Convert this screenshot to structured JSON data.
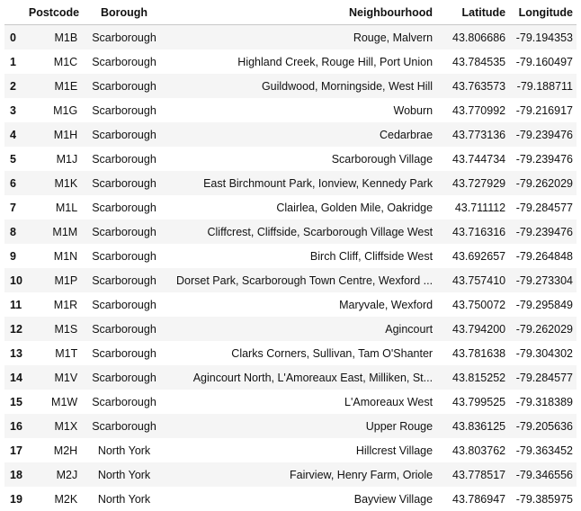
{
  "table": {
    "columns": [
      "",
      "Postcode",
      "Borough",
      "Neighbourhood",
      "Latitude",
      "Longitude"
    ],
    "rows": [
      {
        "index": "0",
        "postcode": "M1B",
        "borough": "Scarborough",
        "neighbourhood": "Rouge, Malvern",
        "latitude": "43.806686",
        "longitude": "-79.194353"
      },
      {
        "index": "1",
        "postcode": "M1C",
        "borough": "Scarborough",
        "neighbourhood": "Highland Creek, Rouge Hill, Port Union",
        "latitude": "43.784535",
        "longitude": "-79.160497"
      },
      {
        "index": "2",
        "postcode": "M1E",
        "borough": "Scarborough",
        "neighbourhood": "Guildwood, Morningside, West Hill",
        "latitude": "43.763573",
        "longitude": "-79.188711"
      },
      {
        "index": "3",
        "postcode": "M1G",
        "borough": "Scarborough",
        "neighbourhood": "Woburn",
        "latitude": "43.770992",
        "longitude": "-79.216917"
      },
      {
        "index": "4",
        "postcode": "M1H",
        "borough": "Scarborough",
        "neighbourhood": "Cedarbrae",
        "latitude": "43.773136",
        "longitude": "-79.239476"
      },
      {
        "index": "5",
        "postcode": "M1J",
        "borough": "Scarborough",
        "neighbourhood": "Scarborough Village",
        "latitude": "43.744734",
        "longitude": "-79.239476"
      },
      {
        "index": "6",
        "postcode": "M1K",
        "borough": "Scarborough",
        "neighbourhood": "East Birchmount Park, Ionview, Kennedy Park",
        "latitude": "43.727929",
        "longitude": "-79.262029"
      },
      {
        "index": "7",
        "postcode": "M1L",
        "borough": "Scarborough",
        "neighbourhood": "Clairlea, Golden Mile, Oakridge",
        "latitude": "43.711112",
        "longitude": "-79.284577"
      },
      {
        "index": "8",
        "postcode": "M1M",
        "borough": "Scarborough",
        "neighbourhood": "Cliffcrest, Cliffside, Scarborough Village West",
        "latitude": "43.716316",
        "longitude": "-79.239476"
      },
      {
        "index": "9",
        "postcode": "M1N",
        "borough": "Scarborough",
        "neighbourhood": "Birch Cliff, Cliffside West",
        "latitude": "43.692657",
        "longitude": "-79.264848"
      },
      {
        "index": "10",
        "postcode": "M1P",
        "borough": "Scarborough",
        "neighbourhood": "Dorset Park, Scarborough Town Centre, Wexford ...",
        "latitude": "43.757410",
        "longitude": "-79.273304"
      },
      {
        "index": "11",
        "postcode": "M1R",
        "borough": "Scarborough",
        "neighbourhood": "Maryvale, Wexford",
        "latitude": "43.750072",
        "longitude": "-79.295849"
      },
      {
        "index": "12",
        "postcode": "M1S",
        "borough": "Scarborough",
        "neighbourhood": "Agincourt",
        "latitude": "43.794200",
        "longitude": "-79.262029"
      },
      {
        "index": "13",
        "postcode": "M1T",
        "borough": "Scarborough",
        "neighbourhood": "Clarks Corners, Sullivan, Tam O'Shanter",
        "latitude": "43.781638",
        "longitude": "-79.304302"
      },
      {
        "index": "14",
        "postcode": "M1V",
        "borough": "Scarborough",
        "neighbourhood": "Agincourt North, L'Amoreaux East, Milliken, St...",
        "latitude": "43.815252",
        "longitude": "-79.284577"
      },
      {
        "index": "15",
        "postcode": "M1W",
        "borough": "Scarborough",
        "neighbourhood": "L'Amoreaux West",
        "latitude": "43.799525",
        "longitude": "-79.318389"
      },
      {
        "index": "16",
        "postcode": "M1X",
        "borough": "Scarborough",
        "neighbourhood": "Upper Rouge",
        "latitude": "43.836125",
        "longitude": "-79.205636"
      },
      {
        "index": "17",
        "postcode": "M2H",
        "borough": "North York",
        "neighbourhood": "Hillcrest Village",
        "latitude": "43.803762",
        "longitude": "-79.363452"
      },
      {
        "index": "18",
        "postcode": "M2J",
        "borough": "North York",
        "neighbourhood": "Fairview, Henry Farm, Oriole",
        "latitude": "43.778517",
        "longitude": "-79.346556"
      },
      {
        "index": "19",
        "postcode": "M2K",
        "borough": "North York",
        "neighbourhood": "Bayview Village",
        "latitude": "43.786947",
        "longitude": "-79.385975"
      }
    ]
  }
}
